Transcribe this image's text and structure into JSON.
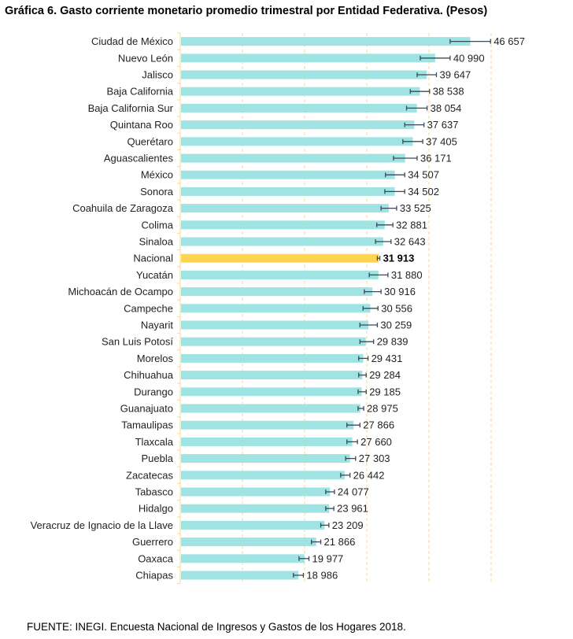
{
  "title": "Gráfica 6. Gasto corriente monetario promedio trimestral por Entidad Federativa. (Pesos)",
  "source": "FUENTE: INEGI. Encuesta Nacional de Ingresos y Gastos de los Hogares 2018.",
  "colors": {
    "bar": "#9fe3e3",
    "highlight": "#ffd54f",
    "grid": "#fbd98a",
    "errorbar": "#3a4a5a"
  },
  "chart_data": {
    "type": "bar",
    "orientation": "horizontal",
    "title": "Gráfica 6. Gasto corriente monetario promedio trimestral por Entidad Federativa. (Pesos)",
    "xlabel": "",
    "ylabel": "",
    "xlim": [
      0,
      50000
    ],
    "grid": true,
    "gridlines_x": [
      0,
      10000,
      20000,
      30000,
      40000,
      50000
    ],
    "highlight_category": "Nacional",
    "categories": [
      "Ciudad de México",
      "Nuevo León",
      "Jalisco",
      "Baja California",
      "Baja California Sur",
      "Quintana Roo",
      "Querétaro",
      "Aguascalientes",
      "México",
      "Sonora",
      "Coahuila de Zaragoza",
      "Colima",
      "Sinaloa",
      "Nacional",
      "Yucatán",
      "Michoacán de Ocampo",
      "Campeche",
      "Nayarit",
      "San Luis Potosí",
      "Morelos",
      "Chihuahua",
      "Durango",
      "Guanajuato",
      "Tamaulipas",
      "Tlaxcala",
      "Puebla",
      "Zacatecas",
      "Tabasco",
      "Hidalgo",
      "Veracruz de Ignacio de la Llave",
      "Guerrero",
      "Oaxaca",
      "Chiapas"
    ],
    "values": [
      46657,
      40990,
      39647,
      38538,
      38054,
      37637,
      37405,
      36171,
      34507,
      34502,
      33525,
      32881,
      32643,
      31913,
      31880,
      30916,
      30556,
      30259,
      29839,
      29431,
      29284,
      29185,
      28975,
      27866,
      27660,
      27303,
      26442,
      24077,
      23961,
      23209,
      21866,
      19977,
      18986
    ],
    "labels": [
      "46 657",
      "40 990",
      "39 647",
      "38 538",
      "38 054",
      "37 637",
      "37 405",
      "36 171",
      "34 507",
      "34 502",
      "33 525",
      "32 881",
      "32 643",
      "31 913",
      "31 880",
      "30 916",
      "30 556",
      "30 259",
      "29 839",
      "29 431",
      "29 284",
      "29 185",
      "28 975",
      "27 866",
      "27 660",
      "27 303",
      "26 442",
      "24 077",
      "23 961",
      "23 209",
      "21 866",
      "19 977",
      "18 986"
    ],
    "error_low": [
      43400,
      38600,
      38100,
      37000,
      36400,
      36100,
      35800,
      34300,
      33000,
      32900,
      32300,
      31600,
      31400,
      31700,
      30400,
      29600,
      29400,
      28900,
      28900,
      28700,
      28700,
      28600,
      28600,
      26800,
      26800,
      26600,
      25800,
      23400,
      23400,
      22600,
      21100,
      19100,
      18200
    ],
    "error_high": [
      49900,
      43400,
      41200,
      40100,
      39700,
      39200,
      39000,
      38100,
      36100,
      36100,
      34800,
      34200,
      33900,
      32100,
      33400,
      32300,
      31800,
      31700,
      31100,
      30200,
      29900,
      29900,
      29500,
      28900,
      28500,
      28200,
      27300,
      24800,
      24700,
      23900,
      22600,
      20700,
      19800
    ]
  }
}
